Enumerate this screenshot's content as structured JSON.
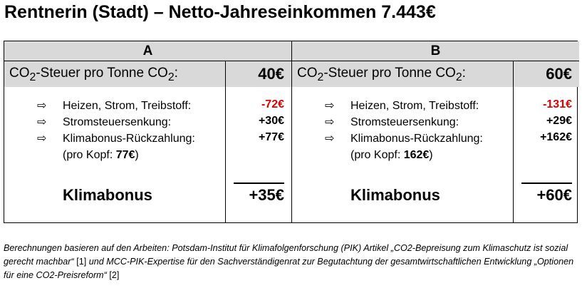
{
  "title": "Rentnerin (Stadt) – Netto-Jahreseinkommen 7.443€",
  "columns": [
    {
      "header": "A",
      "co2_label": "CO",
      "co2_label_mid": "-Steuer pro Tonne CO",
      "co2_sub": "2",
      "co2_end": ":",
      "co2_value": "40€",
      "items": [
        {
          "icon": "arrow-right-icon",
          "arrow": "⇨",
          "label": "Heizen, Strom, Treibstoff:",
          "value": "-72€",
          "negative": true
        },
        {
          "icon": "arrow-right-icon",
          "arrow": "⇨",
          "label": "Stromsteuersenkung:",
          "value": "+30€"
        },
        {
          "icon": "arrow-right-icon",
          "arrow": "⇨",
          "label": "Klimabonus-Rückzahlung:",
          "value": "+77€"
        }
      ],
      "per_head_prefix": "(pro Kopf: ",
      "per_head_value": "77€",
      "per_head_suffix": ")",
      "sum_label": "Klimabonus",
      "sum_value": "+35€"
    },
    {
      "header": "B",
      "co2_label": "CO",
      "co2_label_mid": "-Steuer pro Tonne CO",
      "co2_sub": "2",
      "co2_end": ":",
      "co2_value": "60€",
      "items": [
        {
          "icon": "arrow-right-icon",
          "arrow": "⇨",
          "label": "Heizen, Strom, Treibstoff:",
          "value": "-131€",
          "negative": true
        },
        {
          "icon": "arrow-right-icon",
          "arrow": "⇨",
          "label": "Stromsteuersenkung:",
          "value": "+29€"
        },
        {
          "icon": "arrow-right-icon",
          "arrow": "⇨",
          "label": "Klimabonus-Rückzahlung:",
          "value": "+162€"
        }
      ],
      "per_head_prefix": "(pro Kopf: ",
      "per_head_value": "162€",
      "per_head_suffix": ")",
      "sum_label": "Klimabonus",
      "sum_value": "+60€"
    }
  ],
  "footnote": {
    "p1": "Berechnungen basieren auf den Arbeiten: Potsdam-Institut für Klimafolgenforschung (PIK) Artikel „CO2-Bepreisung zum Klimaschutz ist sozial gerecht machbar“ ",
    "r1": "[1]",
    "p2": " und MCC-PIK-Expertise für den Sachverständigenrat zur Begutachtung der gesamtwirtschaftlichen Entwicklung „Optionen für eine CO2-Preisreform“ ",
    "r2": "[2]"
  },
  "colors": {
    "header_bg": "#d9d9d9",
    "negative": "#e00000"
  }
}
